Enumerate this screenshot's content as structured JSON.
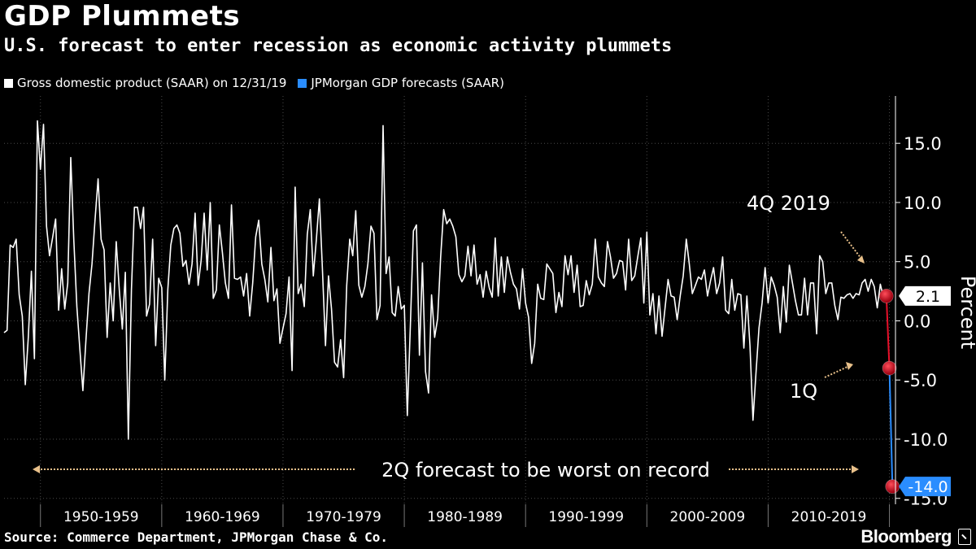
{
  "header": {
    "title": "GDP Plummets",
    "subtitle": "U.S. forecast to enter recession as economic activity plummets"
  },
  "legend": [
    {
      "label": "Gross domestic product (SAAR) on 12/31/19",
      "color": "#ffffff"
    },
    {
      "label": "JPMorgan GDP forecasts (SAAR)",
      "color": "#2a8dff"
    }
  ],
  "footer": {
    "source": "Source: Commerce Department, JPMorgan Chase & Co.",
    "brand": "Bloomberg"
  },
  "chart_data": {
    "type": "line",
    "ylabel": "Percent",
    "ylim": [
      -15.5,
      19
    ],
    "xlim": [
      1947.0,
      2020.5
    ],
    "y_ticks": [
      15.0,
      10.0,
      5.0,
      0.0,
      -5.0,
      -10.0,
      -15.0
    ],
    "y_tick_labels": [
      "15.0",
      "10.0",
      "5.0",
      "0.0",
      "-5.0",
      "-10.0",
      "-15.0"
    ],
    "x_bands": [
      {
        "label": "1950-1959",
        "from": 1950,
        "to": 1960
      },
      {
        "label": "1960-1969",
        "from": 1960,
        "to": 1970
      },
      {
        "label": "1970-1979",
        "from": 1970,
        "to": 1980
      },
      {
        "label": "1980-1989",
        "from": 1980,
        "to": 1990
      },
      {
        "label": "1990-1999",
        "from": 1990,
        "to": 2000
      },
      {
        "label": "2000-2009",
        "from": 2000,
        "to": 2010
      },
      {
        "label": "2010-2019",
        "from": 2010,
        "to": 2020
      }
    ],
    "series": [
      {
        "name": "Gross domestic product (SAAR) on 12/31/19",
        "color": "#ffffff",
        "x": [
          1947.0,
          1947.25,
          1947.5,
          1947.75,
          1948.0,
          1948.25,
          1948.5,
          1948.75,
          1949.0,
          1949.25,
          1949.5,
          1949.75,
          1950.0,
          1950.25,
          1950.5,
          1950.75,
          1951.0,
          1951.25,
          1951.5,
          1951.75,
          1952.0,
          1952.25,
          1952.5,
          1952.75,
          1953.0,
          1953.25,
          1953.5,
          1953.75,
          1954.0,
          1954.25,
          1954.5,
          1954.75,
          1955.0,
          1955.25,
          1955.5,
          1955.75,
          1956.0,
          1956.25,
          1956.5,
          1956.75,
          1957.0,
          1957.25,
          1957.5,
          1957.75,
          1958.0,
          1958.25,
          1958.5,
          1958.75,
          1959.0,
          1959.25,
          1959.5,
          1959.75,
          1960.0,
          1960.25,
          1960.5,
          1960.75,
          1961.0,
          1961.25,
          1961.5,
          1961.75,
          1962.0,
          1962.25,
          1962.5,
          1962.75,
          1963.0,
          1963.25,
          1963.5,
          1963.75,
          1964.0,
          1964.25,
          1964.5,
          1964.75,
          1965.0,
          1965.25,
          1965.5,
          1965.75,
          1966.0,
          1966.25,
          1966.5,
          1966.75,
          1967.0,
          1967.25,
          1967.5,
          1967.75,
          1968.0,
          1968.25,
          1968.5,
          1968.75,
          1969.0,
          1969.25,
          1969.5,
          1969.75,
          1970.0,
          1970.25,
          1970.5,
          1970.75,
          1971.0,
          1971.25,
          1971.5,
          1971.75,
          1972.0,
          1972.25,
          1972.5,
          1972.75,
          1973.0,
          1973.25,
          1973.5,
          1973.75,
          1974.0,
          1974.25,
          1974.5,
          1974.75,
          1975.0,
          1975.25,
          1975.5,
          1975.75,
          1976.0,
          1976.25,
          1976.5,
          1976.75,
          1977.0,
          1977.25,
          1977.5,
          1977.75,
          1978.0,
          1978.25,
          1978.5,
          1978.75,
          1979.0,
          1979.25,
          1979.5,
          1979.75,
          1980.0,
          1980.25,
          1980.5,
          1980.75,
          1981.0,
          1981.25,
          1981.5,
          1981.75,
          1982.0,
          1982.25,
          1982.5,
          1982.75,
          1983.0,
          1983.25,
          1983.5,
          1983.75,
          1984.0,
          1984.25,
          1984.5,
          1984.75,
          1985.0,
          1985.25,
          1985.5,
          1985.75,
          1986.0,
          1986.25,
          1986.5,
          1986.75,
          1987.0,
          1987.25,
          1987.5,
          1987.75,
          1988.0,
          1988.25,
          1988.5,
          1988.75,
          1989.0,
          1989.25,
          1989.5,
          1989.75,
          1990.0,
          1990.25,
          1990.5,
          1990.75,
          1991.0,
          1991.25,
          1991.5,
          1991.75,
          1992.0,
          1992.25,
          1992.5,
          1992.75,
          1993.0,
          1993.25,
          1993.5,
          1993.75,
          1994.0,
          1994.25,
          1994.5,
          1994.75,
          1995.0,
          1995.25,
          1995.5,
          1995.75,
          1996.0,
          1996.25,
          1996.5,
          1996.75,
          1997.0,
          1997.25,
          1997.5,
          1997.75,
          1998.0,
          1998.25,
          1998.5,
          1998.75,
          1999.0,
          1999.25,
          1999.5,
          1999.75,
          2000.0,
          2000.25,
          2000.5,
          2000.75,
          2001.0,
          2001.25,
          2001.5,
          2001.75,
          2002.0,
          2002.25,
          2002.5,
          2002.75,
          2003.0,
          2003.25,
          2003.5,
          2003.75,
          2004.0,
          2004.25,
          2004.5,
          2004.75,
          2005.0,
          2005.25,
          2005.5,
          2005.75,
          2006.0,
          2006.25,
          2006.5,
          2006.75,
          2007.0,
          2007.25,
          2007.5,
          2007.75,
          2008.0,
          2008.25,
          2008.5,
          2008.75,
          2009.0,
          2009.25,
          2009.5,
          2009.75,
          2010.0,
          2010.25,
          2010.5,
          2010.75,
          2011.0,
          2011.25,
          2011.5,
          2011.75,
          2012.0,
          2012.25,
          2012.5,
          2012.75,
          2013.0,
          2013.25,
          2013.5,
          2013.75,
          2014.0,
          2014.25,
          2014.5,
          2014.75,
          2015.0,
          2015.25,
          2015.5,
          2015.75,
          2016.0,
          2016.25,
          2016.5,
          2016.75,
          2017.0,
          2017.25,
          2017.5,
          2017.75,
          2018.0,
          2018.25,
          2018.5,
          2018.75,
          2019.0,
          2019.25,
          2019.5,
          2019.75
        ],
        "values": [
          -1.0,
          -0.8,
          6.4,
          6.2,
          6.9,
          2.2,
          0.4,
          -5.4,
          -1.4,
          4.2,
          -3.2,
          16.9,
          12.8,
          16.6,
          8.0,
          5.5,
          7.0,
          8.6,
          0.9,
          4.4,
          1.0,
          3.2,
          13.8,
          6.9,
          1.2,
          -2.4,
          -5.9,
          -1.6,
          2.3,
          4.8,
          8.5,
          12.0,
          6.9,
          6.0,
          -1.4,
          3.2,
          0.0,
          6.7,
          2.6,
          -0.7,
          4.1,
          -10.0,
          2.6,
          9.6,
          9.6,
          7.8,
          9.6,
          0.4,
          1.4,
          6.9,
          -2.1,
          3.6,
          2.8,
          -5.0,
          2.6,
          6.4,
          7.8,
          8.1,
          7.4,
          4.6,
          5.1,
          3.1,
          4.8,
          9.1,
          3.0,
          5.1,
          9.1,
          4.3,
          10.0,
          1.9,
          2.6,
          8.1,
          5.8,
          3.2,
          1.9,
          9.8,
          3.6,
          3.5,
          3.7,
          2.1,
          4.0,
          0.4,
          3.2,
          7.1,
          8.5,
          4.8,
          3.5,
          1.6,
          6.2,
          1.7,
          2.7,
          -1.9,
          -0.6,
          0.6,
          3.7,
          -4.2,
          11.3,
          2.3,
          3.1,
          1.2,
          7.3,
          9.4,
          3.8,
          6.9,
          10.3,
          4.4,
          -2.1,
          3.8,
          1.0,
          -3.5,
          -3.9,
          -1.6,
          -4.8,
          3.0,
          6.9,
          5.5,
          9.3,
          3.0,
          2.0,
          2.9,
          4.8,
          8.0,
          7.4,
          0.1,
          1.3,
          16.5,
          4.0,
          5.4,
          0.7,
          0.4,
          2.9,
          1.0,
          1.3,
          -8.0,
          -0.5,
          7.6,
          8.1,
          -2.9,
          4.9,
          -4.3,
          -6.1,
          2.2,
          -1.4,
          0.2,
          5.4,
          9.4,
          8.2,
          8.6,
          8.0,
          7.1,
          3.9,
          3.3,
          3.8,
          6.3,
          3.8,
          6.4,
          3.1,
          3.9,
          2.0,
          4.2,
          2.8,
          2.0,
          7.0,
          2.1,
          5.4,
          2.4,
          5.4,
          4.1,
          3.1,
          2.7,
          1.0,
          4.4,
          1.5,
          0.3,
          -3.6,
          -1.9,
          3.1,
          1.9,
          1.8,
          4.8,
          4.4,
          4.0,
          0.7,
          2.4,
          1.2,
          5.5,
          3.9,
          5.5,
          2.4,
          4.7,
          1.2,
          1.3,
          3.4,
          2.2,
          3.1,
          6.9,
          3.7,
          3.2,
          2.9,
          6.7,
          5.4,
          3.6,
          4.0,
          5.1,
          5.0,
          2.6,
          6.9,
          3.4,
          3.8,
          5.4,
          7.0,
          1.5,
          7.5,
          0.5,
          2.3,
          -1.1,
          2.1,
          -1.3,
          1.1,
          3.5,
          2.1,
          2.0,
          0.1,
          2.1,
          3.8,
          6.9,
          4.8,
          2.3,
          3.0,
          3.7,
          3.5,
          4.3,
          2.1,
          3.4,
          4.5,
          2.3,
          3.2,
          5.4,
          0.9,
          0.6,
          3.5,
          0.9,
          2.3,
          2.2,
          -2.3,
          2.1,
          -2.1,
          -8.4,
          -4.4,
          -0.6,
          1.5,
          4.5,
          1.5,
          3.7,
          3.0,
          2.0,
          -1.0,
          2.9,
          -0.1,
          4.7,
          3.2,
          1.7,
          0.5,
          0.5,
          3.6,
          0.5,
          3.2,
          3.2,
          -1.1,
          5.5,
          5.0,
          2.3,
          3.2,
          3.2,
          1.3,
          0.1,
          2.0,
          1.9,
          2.2,
          2.3,
          1.9,
          2.3,
          2.2,
          3.2,
          3.5,
          2.5,
          3.5,
          2.9,
          1.1,
          3.1,
          2.0,
          2.1
        ]
      },
      {
        "name": "JPMorgan GDP forecasts (SAAR)",
        "color": "#2a8dff",
        "x": [
          2019.75,
          2020.0,
          2020.25
        ],
        "values": [
          2.1,
          -4.0,
          -14.0
        ]
      }
    ],
    "forecast_path_color": "#e8102a",
    "markers": [
      {
        "x": 2019.75,
        "y": 2.1,
        "color": "#e8102a"
      },
      {
        "x": 2020.0,
        "y": -4.0,
        "color": "#e8102a"
      },
      {
        "x": 2020.25,
        "y": -14.0,
        "color": "#e8102a"
      }
    ],
    "value_badges": [
      {
        "label": "2.1",
        "value": 2.1,
        "style": "white"
      },
      {
        "label": "-14.0",
        "value": -14.0,
        "style": "blue"
      }
    ],
    "annotations": [
      {
        "text": "4Q 2019"
      },
      {
        "text": "1Q"
      },
      {
        "text": "2Q forecast to be worst on record"
      }
    ]
  }
}
